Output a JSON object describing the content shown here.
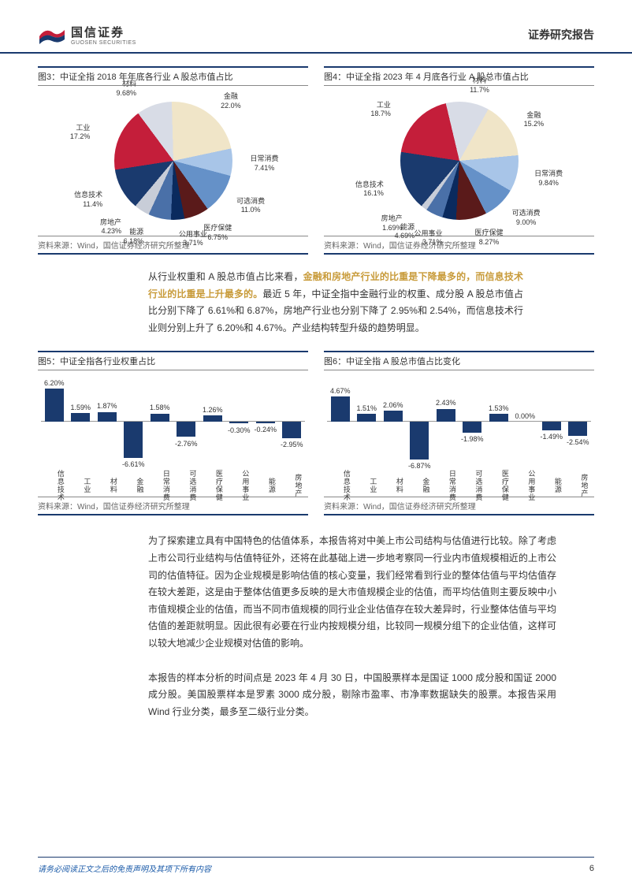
{
  "header": {
    "logo_cn": "国信证券",
    "logo_en": "GUOSEN SECURITIES",
    "report_title": "证券研究报告"
  },
  "colors": {
    "primary": "#1a3a6e",
    "accent": "#c89b3a"
  },
  "pie3": {
    "title": "图3：中证全指 2018 年年底各行业 A 股总市值占比",
    "source": "资料来源：Wind，国信证券经济研究所整理",
    "slices": [
      {
        "label": "信息技术",
        "value": "11.4%",
        "color": "#1a3a6e"
      },
      {
        "label": "工业",
        "value": "17.2%",
        "color": "#c41e3a"
      },
      {
        "label": "材料",
        "value": "9.68%",
        "color": "#d8dce6"
      },
      {
        "label": "金融",
        "value": "22.0%",
        "color": "#f0e5c8"
      },
      {
        "label": "日常消费",
        "value": "7.41%",
        "color": "#a8c5e8"
      },
      {
        "label": "可选消费",
        "value": "11.0%",
        "color": "#6591c8"
      },
      {
        "label": "医疗保健",
        "value": "6.75%",
        "color": "#5a1a1a"
      },
      {
        "label": "公用事业",
        "value": "3.71%",
        "color": "#0a2a5e"
      },
      {
        "label": "能源",
        "value": "6.18%",
        "color": "#4a70a8"
      },
      {
        "label": "房地产",
        "value": "4.23%",
        "color": "#c8cdd8"
      }
    ]
  },
  "pie4": {
    "title": "图4：中证全指 2023 年 4 月底各行业 A 股总市值占比",
    "source": "资料来源：Wind，国信证券经济研究所整理",
    "slices": [
      {
        "label": "信息技术",
        "value": "16.1%",
        "color": "#1a3a6e"
      },
      {
        "label": "工业",
        "value": "18.7%",
        "color": "#c41e3a"
      },
      {
        "label": "材料",
        "value": "11.7%",
        "color": "#d8dce6"
      },
      {
        "label": "金融",
        "value": "15.2%",
        "color": "#f0e5c8"
      },
      {
        "label": "日常消费",
        "value": "9.84%",
        "color": "#a8c5e8"
      },
      {
        "label": "可选消费",
        "value": "9.00%",
        "color": "#6591c8"
      },
      {
        "label": "医疗保健",
        "value": "8.27%",
        "color": "#5a1a1a"
      },
      {
        "label": "公用事业",
        "value": "3.71%",
        "color": "#0a2a5e"
      },
      {
        "label": "能源",
        "value": "4.69%",
        "color": "#4a70a8"
      },
      {
        "label": "房地产",
        "value": "1.69%",
        "color": "#c8cdd8"
      }
    ]
  },
  "para1_pre": "从行业权重和 A 股总市值占比来看，",
  "para1_hl1": "金融和房地产行业的比重是下降最多的，而信息技术行业的比重是上升最多的。",
  "para1_post": "最近 5 年，中证全指中金融行业的权重、成分股 A 股总市值占比分别下降了 6.61%和 6.87%，房地产行业也分别下降了 2.95%和 2.54%，而信息技术行业则分别上升了 6.20%和 4.67%。产业结构转型升级的趋势明显。",
  "bar5": {
    "title": "图5：中证全指各行业权重占比",
    "source": "资料来源：Wind，国信证券经济研究所整理",
    "ymin": -8,
    "ymax": 8,
    "bar_color": "#1a3a6e",
    "categories": [
      "信息技术",
      "工业",
      "材料",
      "金融",
      "日常消费",
      "可选消费",
      "医疗保健",
      "公用事业",
      "能源",
      "房地产"
    ],
    "values": [
      6.2,
      1.59,
      1.87,
      -6.61,
      1.58,
      -2.76,
      1.26,
      -0.3,
      -0.24,
      -2.95
    ],
    "display": [
      "6.20%",
      "1.59%",
      "1.87%",
      "-6.61%",
      "1.58%",
      "-2.76%",
      "1.26%",
      "-0.30%",
      "-0.24%",
      "-2.95%"
    ]
  },
  "bar6": {
    "title": "图6：中证全指 A 股总市值占比变化",
    "source": "资料来源：Wind，国信证券经济研究所整理",
    "ymin": -8,
    "ymax": 8,
    "bar_color": "#1a3a6e",
    "categories": [
      "信息技术",
      "工业",
      "材料",
      "金融",
      "日常消费",
      "可选消费",
      "医疗保健",
      "公用事业",
      "能源",
      "房地产"
    ],
    "values": [
      4.67,
      1.51,
      2.06,
      -6.87,
      2.43,
      -1.98,
      1.53,
      0.0,
      -1.49,
      -2.54
    ],
    "display": [
      "4.67%",
      "1.51%",
      "2.06%",
      "-6.87%",
      "2.43%",
      "-1.98%",
      "1.53%",
      "0.00%",
      "-1.49%",
      "-2.54%"
    ]
  },
  "para2": "为了探索建立具有中国特色的估值体系，本报告将对中美上市公司结构与估值进行比较。除了考虑上市公司行业结构与估值特征外，还将在此基础上进一步地考察同一行业内市值规模相近的上市公司的估值特征。因为企业规模是影响估值的核心变量，我们经常看到行业的整体估值与平均估值存在较大差距，这是由于整体估值更多反映的是大市值规模企业的估值，而平均估值则主要反映中小市值规模企业的估值，而当不同市值规模的同行业企业估值存在较大差异时，行业整体估值与平均估值的差距就明显。因此很有必要在行业内按规模分组，比较同一规模分组下的企业估值，这样可以较大地减少企业规模对估值的影响。",
  "para3": "本报告的样本分析的时间点是 2023 年 4 月 30 日，中国股票样本是国证 1000 成分股和国证 2000 成分股。美国股票样本是罗素 3000 成分股，剔除市盈率、市净率数据缺失的股票。本报告采用 Wind 行业分类，最多至二级行业分类。",
  "footer": {
    "text": "请务必阅读正文之后的免责声明及其项下所有内容",
    "page": "6"
  }
}
